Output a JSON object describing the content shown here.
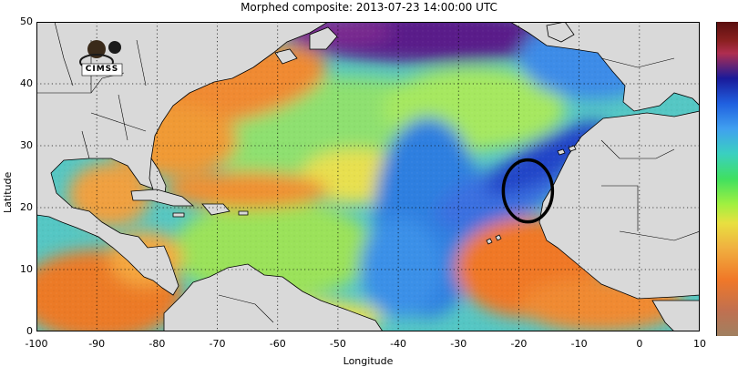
{
  "title": "Morphed composite: 2013-07-23 14:00:00 UTC",
  "logo_text": "CIMSS",
  "axes": {
    "xlabel": "Longitude",
    "ylabel": "Latitude",
    "xticks": [
      "-100",
      "-90",
      "-80",
      "-70",
      "-60",
      "-50",
      "-40",
      "-30",
      "-20",
      "-10",
      "0",
      "10"
    ],
    "yticks": [
      "0",
      "10",
      "20",
      "30",
      "40",
      "50"
    ],
    "xlim": [
      -100,
      10
    ],
    "ylim": [
      0,
      50
    ]
  },
  "colors": {
    "land": "#d9d9d9",
    "dry_air": "#5a1a6a",
    "moist_air": "#f08a30",
    "annotation": "#000000"
  },
  "annotation": {
    "shape": "ellipse",
    "center_lon": -18.5,
    "center_lat": 22.7
  }
}
